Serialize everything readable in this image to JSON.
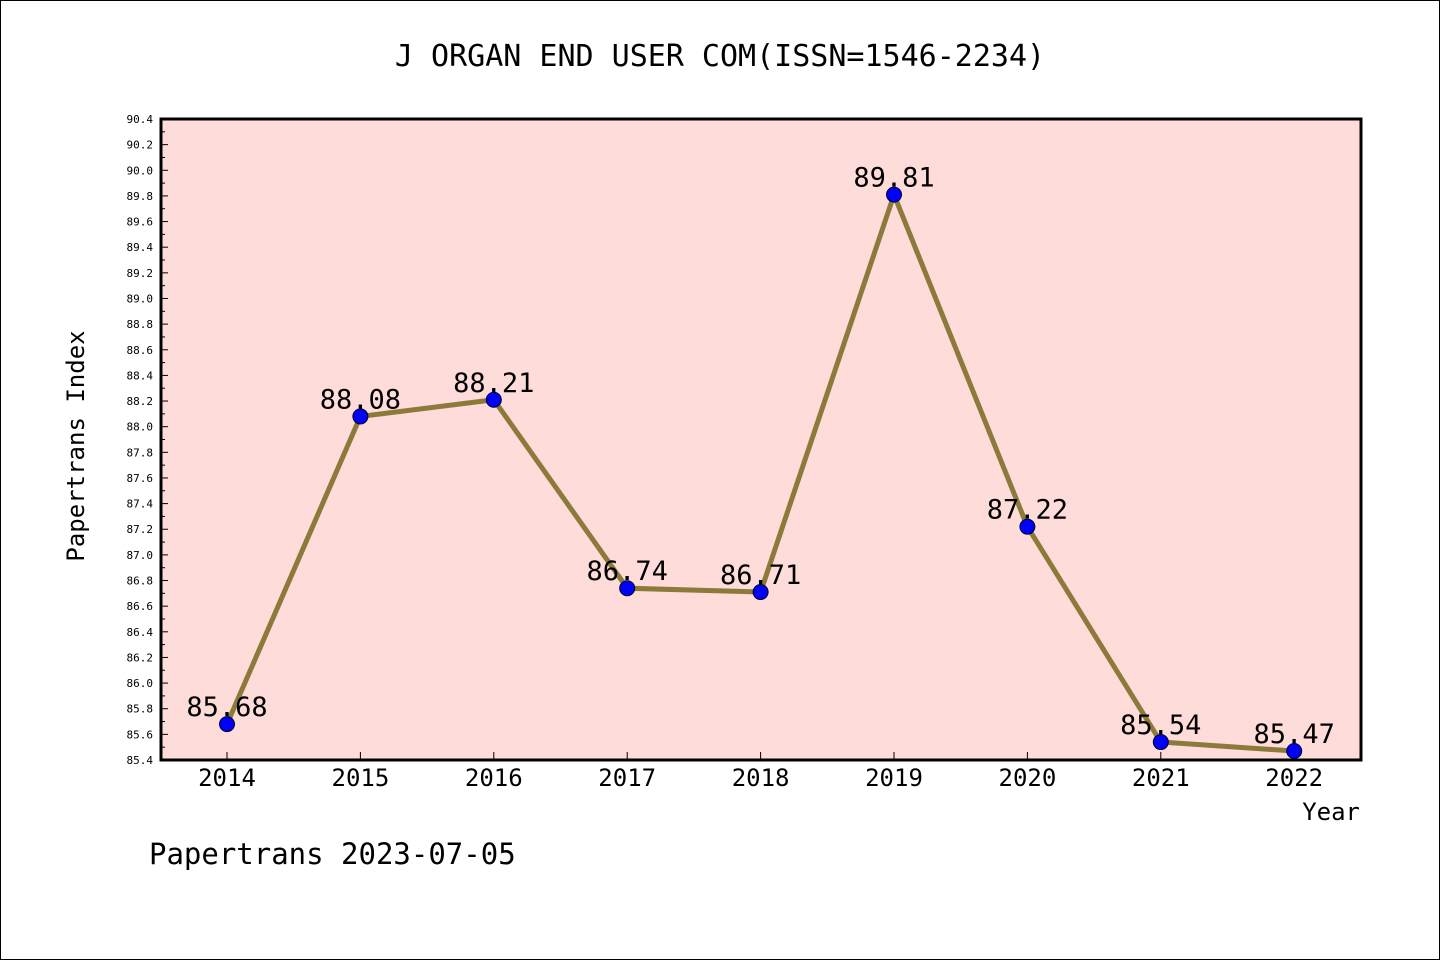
{
  "chart_data": {
    "type": "line",
    "title": "J ORGAN END USER COM(ISSN=1546-2234)",
    "xlabel": "Year",
    "ylabel": "Papertrans Index",
    "x": [
      "2014",
      "2015",
      "2016",
      "2017",
      "2018",
      "2019",
      "2020",
      "2021",
      "2022"
    ],
    "series": [
      {
        "values": [
          85.68,
          88.08,
          88.21,
          86.74,
          86.71,
          89.81,
          87.22,
          85.54,
          85.47
        ],
        "data_labels": [
          "85.68",
          "88.08",
          "88.21",
          "86.74",
          "86.71",
          "89.81",
          "87.22",
          "85.54",
          "85.47"
        ]
      }
    ],
    "ylim": [
      85.4,
      90.4
    ],
    "ytick_step": 0.2,
    "ytick_labels": [
      "85.4",
      "85.6",
      "85.8",
      "86.0",
      "86.2",
      "86.4",
      "86.6",
      "86.8",
      "87.0",
      "87.2",
      "87.4",
      "87.6",
      "87.8",
      "88.0",
      "88.2",
      "88.4",
      "88.6",
      "88.8",
      "89.0",
      "89.2",
      "89.4",
      "89.6",
      "89.8",
      "90.0",
      "90.2",
      "90.4"
    ],
    "grid": false,
    "legend": "none",
    "footer": "Papertrans 2023-07-05",
    "colors": {
      "plot_background": "#fddcda",
      "line": "#8b7a3a",
      "marker": "#0000ff",
      "axis": "#000000"
    }
  }
}
